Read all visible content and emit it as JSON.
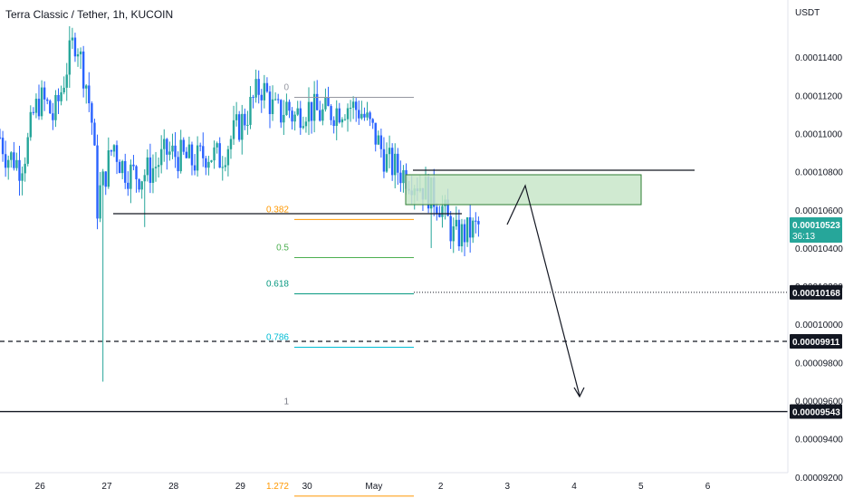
{
  "header": {
    "title": "Terra Classic / Tether, 1h, KUCOIN",
    "unit": "USDT"
  },
  "chart_data": {
    "type": "candlestick",
    "title": "Terra Classic / Tether, 1h, KUCOIN",
    "ylabel": "USDT",
    "ylim": [
      9.09e-05,
      0.000117
    ],
    "y_ticks": [
      "0.00011400",
      "0.00011200",
      "0.00011000",
      "0.00010800",
      "0.00010600",
      "0.00010400",
      "0.00010200",
      "0.00010000",
      "0.00009800",
      "0.00009600",
      "0.00009400",
      "0.00009200"
    ],
    "x_ticks": [
      "26",
      "27",
      "28",
      "29",
      "30",
      "May",
      "2",
      "3",
      "4",
      "5",
      "6"
    ],
    "x_tick_days": [
      0,
      1,
      2,
      3,
      4,
      5,
      6,
      7,
      8,
      9,
      10
    ],
    "x_range_days": [
      -0.6,
      11.2
    ],
    "colors": {
      "up": "#26a69a",
      "down": "#2962ff",
      "box_fill": "#c8e6c9",
      "box_stroke": "#2e7d32"
    },
    "close_path_days": [
      -0.6,
      -0.5,
      -0.4,
      -0.3,
      -0.2,
      -0.1,
      0,
      0.1,
      0.2,
      0.3,
      0.4,
      0.5,
      0.55,
      0.6,
      0.7,
      0.8,
      0.85,
      0.9,
      0.95,
      1.0,
      1.1,
      1.2,
      1.3,
      1.5,
      1.7,
      1.9,
      2.1,
      2.3,
      2.5,
      2.7,
      2.9,
      3.1,
      3.2,
      3.3,
      3.4,
      3.5,
      3.6,
      3.7,
      3.8,
      3.9,
      4.0,
      4.2,
      4.4,
      4.6,
      4.8,
      5.0,
      5.2,
      5.4,
      5.6,
      5.8,
      6.0,
      6.2,
      6.4,
      6.5,
      6.6
    ],
    "close_path_values": [
      0.0001098,
      0.0001088,
      0.0001087,
      0.0001083,
      0.0001092,
      0.000111,
      0.0001118,
      0.0001115,
      0.0001108,
      0.000112,
      0.0001135,
      0.0001148,
      0.000115,
      0.000114,
      0.0001125,
      0.00011,
      0.000106,
      0.000107,
      0.0001075,
      0.0001082,
      0.0001095,
      0.0001085,
      0.000108,
      0.0001078,
      0.0001082,
      0.000109,
      0.0001088,
      0.0001085,
      0.000109,
      0.0001087,
      0.00011,
      0.000111,
      0.0001118,
      0.0001125,
      0.000112,
      0.0001112,
      0.000111,
      0.0001115,
      0.0001108,
      0.0001112,
      0.0001114,
      0.000111,
      0.0001112,
      0.0001115,
      0.0001112,
      0.00011,
      0.0001085,
      0.000108,
      0.0001076,
      0.000107,
      0.0001063,
      0.0001046,
      0.0001048,
      0.000105,
      0.0001052
    ],
    "price_labels": [
      {
        "label": "0.00010523",
        "sub": "36:13",
        "value": 0.00010523,
        "color": "#26a69a"
      },
      {
        "label": "0.00010168",
        "value": 0.00010168,
        "color": "#131722"
      },
      {
        "label": "0.00009911",
        "value": 9.911e-05,
        "color": "#131722"
      },
      {
        "label": "0.00009543",
        "value": 9.543e-05,
        "color": "#131722"
      }
    ],
    "fib_levels": [
      {
        "label": "0",
        "value": 0.0001119,
        "color": "#9598a1"
      },
      {
        "label": "0.382",
        "value": 0.0001055,
        "color": "#ff9800"
      },
      {
        "label": "0.5",
        "value": 0.0001035,
        "color": "#4caf50"
      },
      {
        "label": "0.618",
        "value": 0.0001016,
        "color": "#089981"
      },
      {
        "label": "0.786",
        "value": 9.88e-05,
        "color": "#00bcd4"
      },
      {
        "label": "1",
        "value": 9.543e-05,
        "color": "#787b86"
      },
      {
        "label": "1.272",
        "value": 9.1e-05,
        "color": "#ff9800"
      }
    ]
  }
}
